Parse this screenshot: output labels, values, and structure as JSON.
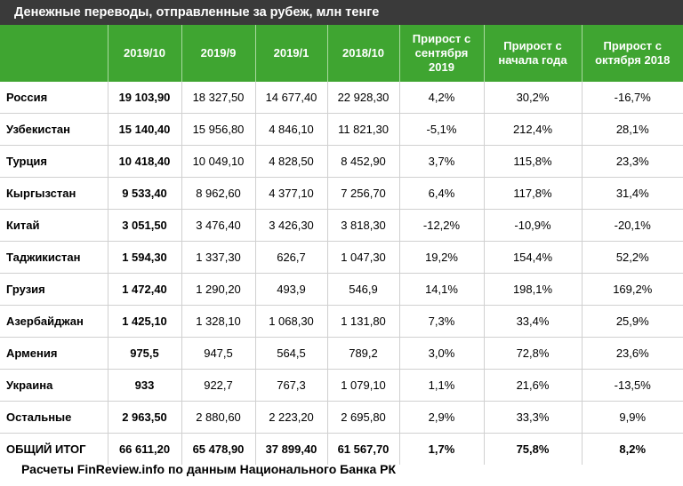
{
  "title": "Денежные переводы, отправленные за рубеж, млн тенге",
  "columns": [
    "2019/10",
    "2019/9",
    "2019/1",
    "2018/10",
    "Прирост с сентября 2019",
    "Прирост с начала года",
    "Прирост с октября 2018"
  ],
  "rows": [
    {
      "country": "Россия",
      "cells": [
        "19 103,90",
        "18 327,50",
        "14 677,40",
        "22 928,30",
        "4,2%",
        "30,2%",
        "-16,7%"
      ]
    },
    {
      "country": "Узбекистан",
      "cells": [
        "15 140,40",
        "15 956,80",
        "4 846,10",
        "11 821,30",
        "-5,1%",
        "212,4%",
        "28,1%"
      ]
    },
    {
      "country": "Турция",
      "cells": [
        "10 418,40",
        "10 049,10",
        "4 828,50",
        "8 452,90",
        "3,7%",
        "115,8%",
        "23,3%"
      ]
    },
    {
      "country": "Кыргызстан",
      "cells": [
        "9 533,40",
        "8 962,60",
        "4 377,10",
        "7 256,70",
        "6,4%",
        "117,8%",
        "31,4%"
      ]
    },
    {
      "country": "Китай",
      "cells": [
        "3 051,50",
        "3 476,40",
        "3 426,30",
        "3 818,30",
        "-12,2%",
        "-10,9%",
        "-20,1%"
      ]
    },
    {
      "country": "Таджикистан",
      "cells": [
        "1 594,30",
        "1 337,30",
        "626,7",
        "1 047,30",
        "19,2%",
        "154,4%",
        "52,2%"
      ]
    },
    {
      "country": "Грузия",
      "cells": [
        "1 472,40",
        "1 290,20",
        "493,9",
        "546,9",
        "14,1%",
        "198,1%",
        "169,2%"
      ]
    },
    {
      "country": "Азербайджан",
      "cells": [
        "1 425,10",
        "1 328,10",
        "1 068,30",
        "1 131,80",
        "7,3%",
        "33,4%",
        "25,9%"
      ]
    },
    {
      "country": "Армения",
      "cells": [
        "975,5",
        "947,5",
        "564,5",
        "789,2",
        "3,0%",
        "72,8%",
        "23,6%"
      ]
    },
    {
      "country": "Украина",
      "cells": [
        "933",
        "922,7",
        "767,3",
        "1 079,10",
        "1,1%",
        "21,6%",
        "-13,5%"
      ]
    },
    {
      "country": "Остальные",
      "cells": [
        "2 963,50",
        "2 880,60",
        "2 223,20",
        "2 695,80",
        "2,9%",
        "33,3%",
        "9,9%"
      ]
    }
  ],
  "total": {
    "label": "ОБЩИЙ ИТОГ",
    "cells": [
      "66 611,20",
      "65 478,90",
      "37 899,40",
      "61 567,70",
      "1,7%",
      "75,8%",
      "8,2%"
    ]
  },
  "footer": "Расчеты FinReview.info по данным Национального Банка РК"
}
